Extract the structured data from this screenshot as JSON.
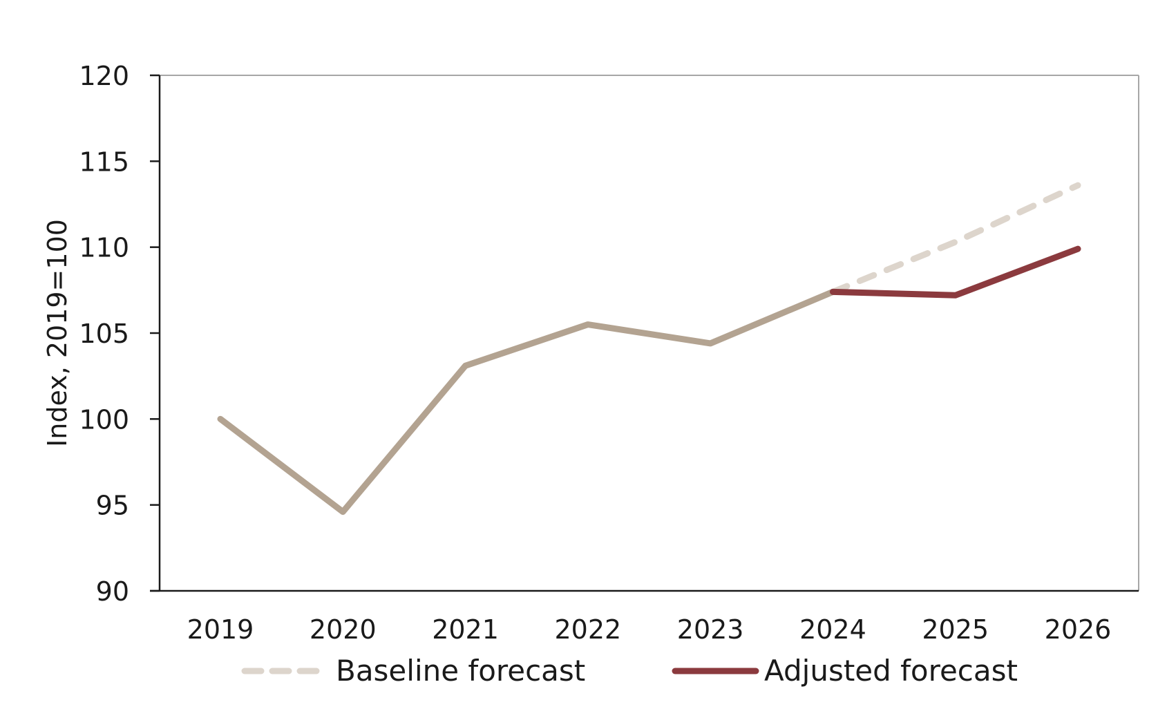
{
  "chart_data": {
    "type": "line",
    "xlabel": "",
    "ylabel": "Index, 2019=100",
    "categories": [
      "2019",
      "2020",
      "2021",
      "2022",
      "2023",
      "2024",
      "2025",
      "2026"
    ],
    "ylim": [
      90,
      120
    ],
    "yticks": [
      90,
      95,
      100,
      105,
      110,
      115,
      120
    ],
    "grid": false,
    "legend": {
      "position": "bottom",
      "entries": [
        "Baseline forecast",
        "Adjusted forecast"
      ]
    },
    "series": [
      {
        "key": "history",
        "values": [
          100,
          94.6,
          103.1,
          105.5,
          104.4,
          107.4,
          null,
          null
        ],
        "color": "#b3a391",
        "style": "solid"
      },
      {
        "key": "baseline",
        "name": "Baseline forecast",
        "values": [
          null,
          null,
          null,
          null,
          null,
          107.4,
          110.3,
          113.6
        ],
        "color": "#ddd5cc",
        "style": "dashed"
      },
      {
        "key": "adjusted",
        "name": "Adjusted forecast",
        "values": [
          null,
          null,
          null,
          null,
          null,
          107.4,
          107.2,
          109.9
        ],
        "color": "#8b3a3e",
        "style": "solid"
      }
    ]
  }
}
